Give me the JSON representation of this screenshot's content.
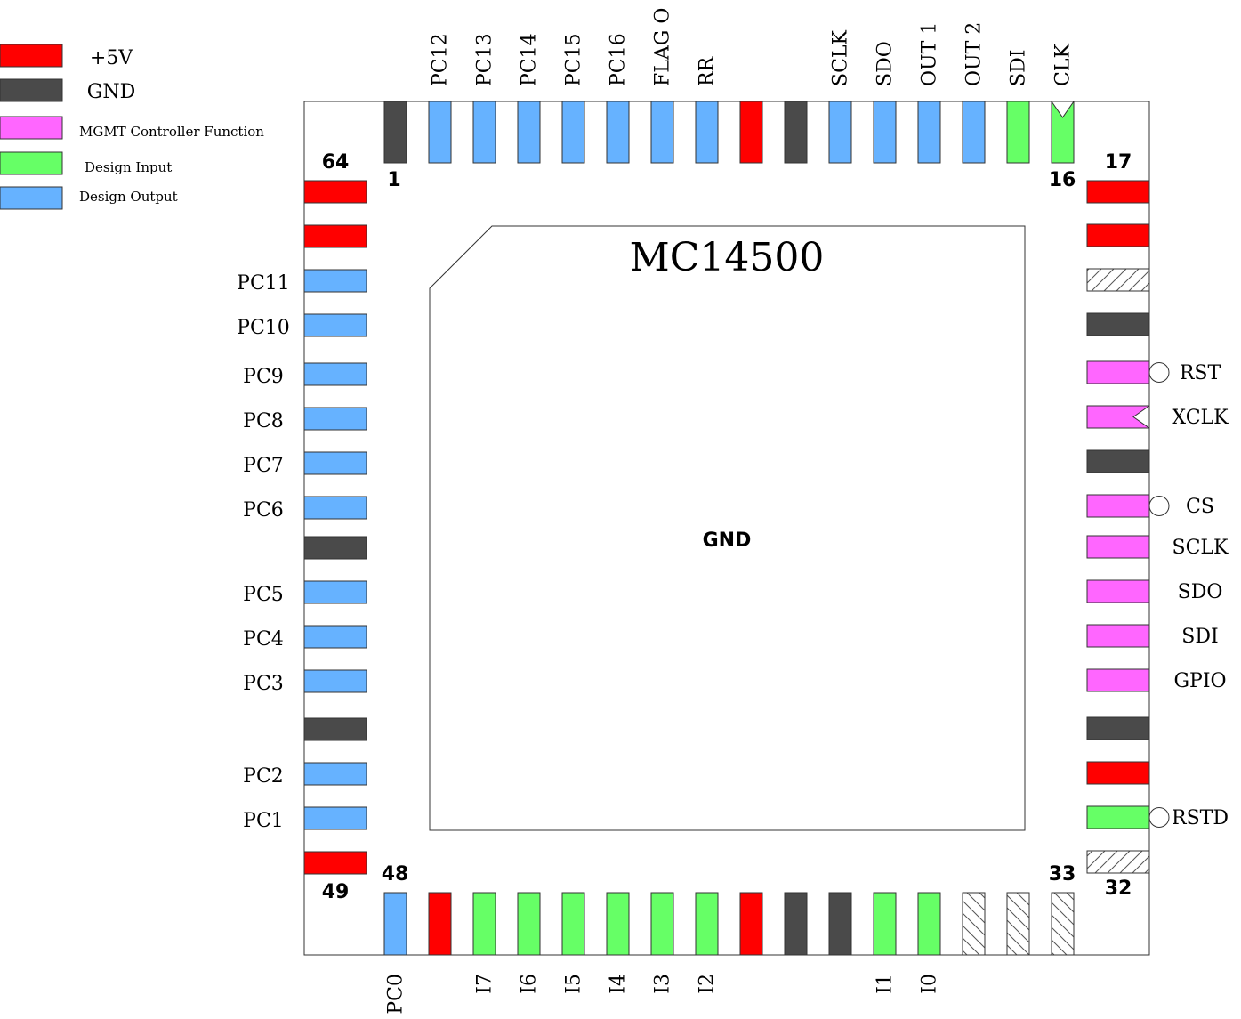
{
  "chip": {
    "title": "MC14500",
    "center_label": "GND"
  },
  "colors": {
    "vcc": "#ff0000",
    "gnd": "#4a4a4a",
    "mgmt": "#ff66ff",
    "input": "#66ff66",
    "output": "#66b2ff",
    "nc": "hatch"
  },
  "legend": [
    {
      "type": "vcc",
      "label": "+5V"
    },
    {
      "type": "gnd",
      "label": "GND"
    },
    {
      "type": "mgmt",
      "label": "MGMT Controller Function"
    },
    {
      "type": "input",
      "label": "Design Input"
    },
    {
      "type": "output",
      "label": "Design Output"
    }
  ],
  "corner_numbers": {
    "n1": "1",
    "n16": "16",
    "n17": "17",
    "n32": "32",
    "n33": "33",
    "n48": "48",
    "n49": "49",
    "n64": "64"
  },
  "top_pins": [
    {
      "type": "gnd",
      "label": ""
    },
    {
      "type": "output",
      "label": "PC12"
    },
    {
      "type": "output",
      "label": "PC13"
    },
    {
      "type": "output",
      "label": "PC14"
    },
    {
      "type": "output",
      "label": "PC15"
    },
    {
      "type": "output",
      "label": "PC16"
    },
    {
      "type": "output",
      "label": "FLAG O"
    },
    {
      "type": "output",
      "label": "RR"
    },
    {
      "type": "vcc",
      "label": ""
    },
    {
      "type": "gnd",
      "label": ""
    },
    {
      "type": "output",
      "label": "SCLK"
    },
    {
      "type": "output",
      "label": "SDO"
    },
    {
      "type": "output",
      "label": "OUT 1"
    },
    {
      "type": "output",
      "label": "OUT 2"
    },
    {
      "type": "input",
      "label": "SDI"
    },
    {
      "type": "input",
      "label": "CLK",
      "marker": "clock"
    }
  ],
  "right_pins": [
    {
      "type": "vcc",
      "label": ""
    },
    {
      "type": "vcc",
      "label": ""
    },
    {
      "type": "nc",
      "label": ""
    },
    {
      "type": "gnd",
      "label": ""
    },
    {
      "type": "mgmt",
      "label": "RST",
      "marker": "bubble"
    },
    {
      "type": "mgmt",
      "label": "XCLK",
      "marker": "clock"
    },
    {
      "type": "gnd",
      "label": ""
    },
    {
      "type": "mgmt",
      "label": "CS",
      "marker": "bubble"
    },
    {
      "type": "mgmt",
      "label": "SCLK"
    },
    {
      "type": "mgmt",
      "label": "SDO"
    },
    {
      "type": "mgmt",
      "label": "SDI"
    },
    {
      "type": "mgmt",
      "label": "GPIO"
    },
    {
      "type": "gnd",
      "label": ""
    },
    {
      "type": "vcc",
      "label": ""
    },
    {
      "type": "input",
      "label": "RSTD",
      "marker": "bubble"
    },
    {
      "type": "nc",
      "label": ""
    }
  ],
  "bottom_pins": [
    {
      "type": "output",
      "label": "PC0"
    },
    {
      "type": "vcc",
      "label": ""
    },
    {
      "type": "input",
      "label": "I7"
    },
    {
      "type": "input",
      "label": "I6"
    },
    {
      "type": "input",
      "label": "I5"
    },
    {
      "type": "input",
      "label": "I4"
    },
    {
      "type": "input",
      "label": "I3"
    },
    {
      "type": "input",
      "label": "I2"
    },
    {
      "type": "vcc",
      "label": ""
    },
    {
      "type": "gnd",
      "label": ""
    },
    {
      "type": "gnd",
      "label": ""
    },
    {
      "type": "input",
      "label": "I1"
    },
    {
      "type": "input",
      "label": "I0"
    },
    {
      "type": "nc",
      "label": ""
    },
    {
      "type": "nc",
      "label": ""
    },
    {
      "type": "nc",
      "label": ""
    }
  ],
  "left_pins": [
    {
      "type": "vcc",
      "label": ""
    },
    {
      "type": "vcc",
      "label": ""
    },
    {
      "type": "output",
      "label": "PC11"
    },
    {
      "type": "output",
      "label": "PC10"
    },
    {
      "type": "output",
      "label": "PC9"
    },
    {
      "type": "output",
      "label": "PC8"
    },
    {
      "type": "output",
      "label": "PC7"
    },
    {
      "type": "output",
      "label": "PC6"
    },
    {
      "type": "gnd",
      "label": ""
    },
    {
      "type": "output",
      "label": "PC5"
    },
    {
      "type": "output",
      "label": "PC4"
    },
    {
      "type": "output",
      "label": "PC3"
    },
    {
      "type": "gnd",
      "label": ""
    },
    {
      "type": "output",
      "label": "PC2"
    },
    {
      "type": "output",
      "label": "PC1"
    },
    {
      "type": "vcc",
      "label": ""
    }
  ]
}
